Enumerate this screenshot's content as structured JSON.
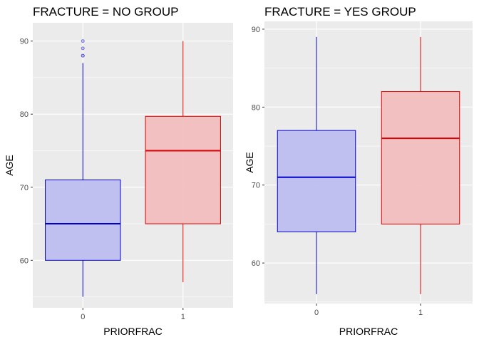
{
  "chart_data": [
    {
      "type": "boxplot",
      "title": "FRACTURE = NO GROUP",
      "xlabel": "PRIORFRAC",
      "ylabel": "AGE",
      "categories": [
        "0",
        "1"
      ],
      "ylim": [
        53.5,
        92.5
      ],
      "yticks": [
        60,
        70,
        80,
        90
      ],
      "grid": true,
      "boxes": [
        {
          "category": "0",
          "min": 55,
          "q1": 60,
          "median": 65,
          "q3": 71,
          "max": 87,
          "outliers": [
            88,
            88,
            89,
            90
          ],
          "color": "#0000cc",
          "fill": "#bcbcf0"
        },
        {
          "category": "1",
          "min": 57,
          "q1": 65,
          "median": 75,
          "q3": 79.7,
          "max": 90,
          "outliers": [],
          "color": "#dd0000",
          "fill": "#f2bcbc"
        }
      ]
    },
    {
      "type": "boxplot",
      "title": "FRACTURE = YES GROUP",
      "xlabel": "PRIORFRAC",
      "ylabel": "AGE",
      "categories": [
        "0",
        "1"
      ],
      "ylim": [
        54.8,
        91
      ],
      "yticks": [
        60,
        70,
        80,
        90
      ],
      "grid": true,
      "boxes": [
        {
          "category": "0",
          "min": 56,
          "q1": 64,
          "median": 71,
          "q3": 77,
          "max": 89,
          "outliers": [],
          "color": "#0000cc",
          "fill": "#bcbcf0"
        },
        {
          "category": "1",
          "min": 56,
          "q1": 65,
          "median": 76,
          "q3": 82,
          "max": 89,
          "outliers": [],
          "color": "#dd0000",
          "fill": "#f2bcbc"
        }
      ]
    }
  ]
}
